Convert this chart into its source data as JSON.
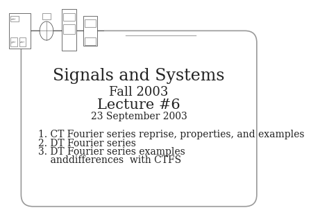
{
  "title1": "Signals and Systems",
  "title2": "Fall 2003",
  "title3": "Lecture #6",
  "title4": "23 September 2003",
  "items": [
    "1. CT Fourier series reprise, properties, and examples",
    "2. DT Fourier series",
    "3. DT Fourier series examples",
    "    anddifferences  with CTFS"
  ],
  "bg_color": "#ffffff",
  "border_color": "#999999",
  "text_color": "#222222",
  "title_font_size": 17,
  "subtitle_font_size": 13,
  "lecture_font_size": 15,
  "date_font_size": 10,
  "item_font_size": 10
}
